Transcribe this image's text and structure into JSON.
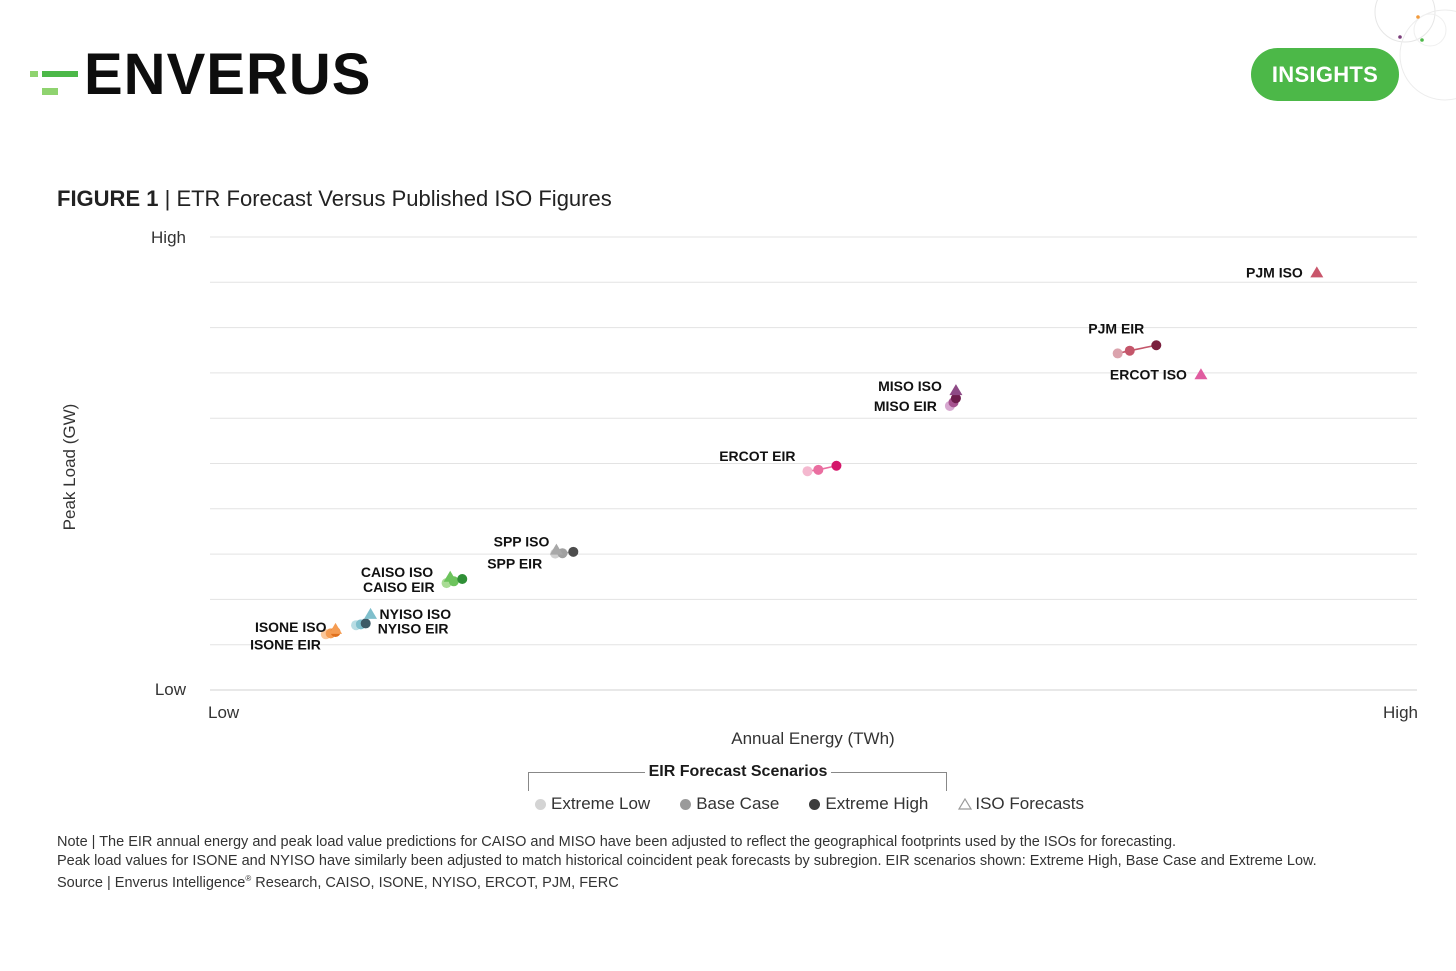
{
  "brand": {
    "name": "ENVERUS",
    "badge": "INSIGHTS",
    "colors": {
      "green": "#4cb848",
      "light_green": "#8fd36f",
      "dark": "#0d0d0d"
    }
  },
  "figure": {
    "label": "FIGURE 1",
    "separator": "|",
    "title": "ETR Forecast Versus Published ISO Figures"
  },
  "chart_data": {
    "type": "scatter",
    "title": "ETR Forecast Versus Published ISO Figures",
    "xlabel": "Annual Energy (TWh)",
    "ylabel": "Peak Load (GW)",
    "xlim": [
      0,
      100
    ],
    "ylim": [
      0,
      100
    ],
    "x_ticks": [
      "Low",
      "High"
    ],
    "y_ticks": [
      "Low",
      "High"
    ],
    "gridlines": 11,
    "series": [
      {
        "name": "PJM EIR",
        "kind": "eir",
        "low": [
          75.2,
          74.3
        ],
        "base": [
          76.2,
          74.9
        ],
        "high": [
          78.4,
          76.1
        ],
        "colors": [
          "#dba3ad",
          "#c4566a",
          "#7a1f3d"
        ]
      },
      {
        "name": "ERCOT EIR",
        "kind": "eir",
        "low": [
          49.5,
          48.3
        ],
        "base": [
          50.4,
          48.6
        ],
        "high": [
          51.9,
          49.5
        ],
        "colors": [
          "#f4b8cf",
          "#ea6ea0",
          "#d4166a"
        ]
      },
      {
        "name": "MISO EIR",
        "kind": "eir",
        "low": [
          61.3,
          62.7
        ],
        "base": [
          61.6,
          63.5
        ],
        "high": [
          61.8,
          64.4
        ],
        "colors": [
          "#d7a8d0",
          "#a6528f",
          "#6e1d4d"
        ]
      },
      {
        "name": "SPP EIR",
        "kind": "eir",
        "low": [
          28.6,
          30.1
        ],
        "base": [
          29.2,
          30.2
        ],
        "high": [
          30.1,
          30.5
        ],
        "colors": [
          "#d0d0d0",
          "#a0a0a0",
          "#4d4d4d"
        ]
      },
      {
        "name": "CAISO EIR",
        "kind": "eir",
        "low": [
          19.6,
          23.6
        ],
        "base": [
          20.2,
          24.0
        ],
        "high": [
          20.9,
          24.5
        ],
        "colors": [
          "#a9dc95",
          "#6cc35c",
          "#2f8f36"
        ]
      },
      {
        "name": "NYISO EIR",
        "kind": "eir",
        "low": [
          12.1,
          14.3
        ],
        "base": [
          12.5,
          14.5
        ],
        "high": [
          12.9,
          14.7
        ],
        "colors": [
          "#b8dde4",
          "#7fbfcc",
          "#3d5a66"
        ]
      },
      {
        "name": "ISONE EIR",
        "kind": "eir",
        "low": [
          9.6,
          12.3
        ],
        "base": [
          10.0,
          12.5
        ],
        "high": [
          10.4,
          12.8
        ],
        "colors": [
          "#fbc79a",
          "#f59c52",
          "#e0701c"
        ]
      },
      {
        "name": "PJM ISO",
        "kind": "iso",
        "point": [
          91.7,
          92.2
        ],
        "color": "#c9566b"
      },
      {
        "name": "ERCOT ISO",
        "kind": "iso",
        "point": [
          82.1,
          69.7
        ],
        "color": "#e05ca0"
      },
      {
        "name": "MISO ISO",
        "kind": "iso",
        "point": [
          61.8,
          66.2
        ],
        "color": "#8e4a86"
      },
      {
        "name": "SPP ISO",
        "kind": "iso",
        "point": [
          28.7,
          31.0
        ],
        "color": "#a8a8a8"
      },
      {
        "name": "CAISO ISO",
        "kind": "iso",
        "point": [
          19.9,
          25.0
        ],
        "color": "#6cc35c"
      },
      {
        "name": "NYISO ISO",
        "kind": "iso",
        "point": [
          13.3,
          16.8
        ],
        "color": "#7fbfcc"
      },
      {
        "name": "ISONE ISO",
        "kind": "iso",
        "point": [
          10.4,
          13.5
        ],
        "color": "#f59c52"
      }
    ],
    "legend": {
      "title": "EIR Forecast Scenarios",
      "items": [
        {
          "label": "Extreme Low",
          "color": "#d4d4d4",
          "shape": "circle"
        },
        {
          "label": "Base Case",
          "color": "#9a9a9a",
          "shape": "circle"
        },
        {
          "label": "Extreme High",
          "color": "#3d3d3d",
          "shape": "circle"
        },
        {
          "label": "ISO Forecasts",
          "color": "#9a9a9a",
          "shape": "triangle-outline"
        }
      ]
    }
  },
  "notes": {
    "line1": "Note | The EIR annual energy and peak load value predictions for CAISO and MISO have been adjusted to reflect the geographical footprints used by the ISOs for forecasting.",
    "line2": "Peak load values for ISONE and NYISO have similarly been adjusted to match historical coincident peak forecasts by subregion. EIR scenarios shown: Extreme High, Base Case and Extreme Low.",
    "source_prefix": "Source | Enverus Intelligence",
    "source_mark": "®",
    "source_suffix": " Research, CAISO, ISONE, NYISO, ERCOT, PJM, FERC"
  }
}
